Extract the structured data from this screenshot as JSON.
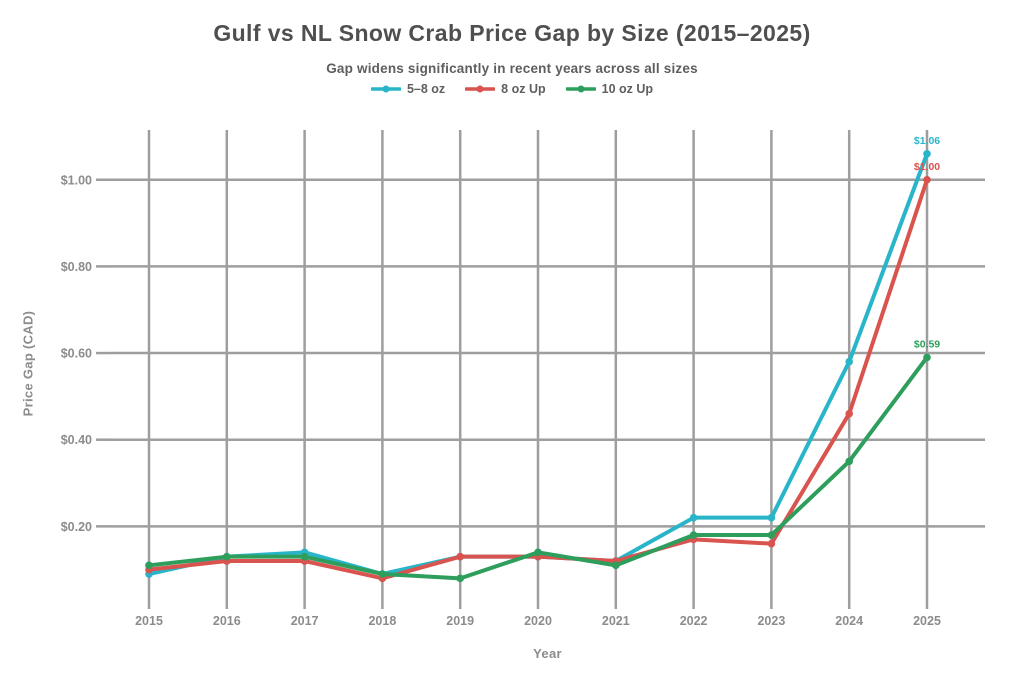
{
  "header": {
    "title": "Gulf vs NL Snow Crab Price Gap by Size (2015–2025)",
    "subtitle": "Gap widens significantly in recent years across all sizes"
  },
  "colors": {
    "accent_cyan": "#29b5c9",
    "accent_red": "#d9534f",
    "accent_green": "#2e9e5c",
    "grid": "#9e9e9e",
    "title_text": "#4f4f4f",
    "subtitle_text": "#5e5e5e",
    "axis_text": "#8c8c8c"
  },
  "chart_data": {
    "type": "line",
    "title": "Gulf vs NL Snow Crab Price Gap by Size (2015–2025)",
    "subtitle": "Gap widens significantly in recent years across all sizes",
    "xlabel": "Year",
    "ylabel": "Price Gap (CAD)",
    "x": [
      2015,
      2016,
      2017,
      2018,
      2019,
      2020,
      2021,
      2022,
      2023,
      2024,
      2025
    ],
    "series": [
      {
        "name": "5–8 oz",
        "color": "#29b5c9",
        "values": [
          0.09,
          0.13,
          0.14,
          0.09,
          0.13,
          0.13,
          0.12,
          0.22,
          0.22,
          0.58,
          1.06
        ],
        "end_label": "$1.06"
      },
      {
        "name": "8 oz Up",
        "color": "#d9534f",
        "values": [
          0.1,
          0.12,
          0.12,
          0.08,
          0.13,
          0.13,
          0.12,
          0.17,
          0.16,
          0.46,
          1.0
        ],
        "end_label": "$1.00"
      },
      {
        "name": "10 oz Up",
        "color": "#2e9e5c",
        "values": [
          0.11,
          0.13,
          0.13,
          0.09,
          0.08,
          0.14,
          0.11,
          0.18,
          0.18,
          0.35,
          0.59
        ],
        "end_label": "$0.59"
      }
    ],
    "yticks": [
      {
        "value": 0.2,
        "label": "$0.20"
      },
      {
        "value": 0.4,
        "label": "$0.40"
      },
      {
        "value": 0.6,
        "label": "$0.60"
      },
      {
        "value": 0.8,
        "label": "$0.80"
      },
      {
        "value": 1.0,
        "label": "$1.00"
      }
    ],
    "ylim": [
      0,
      1.12
    ],
    "grid": true,
    "legend_position": "top"
  }
}
